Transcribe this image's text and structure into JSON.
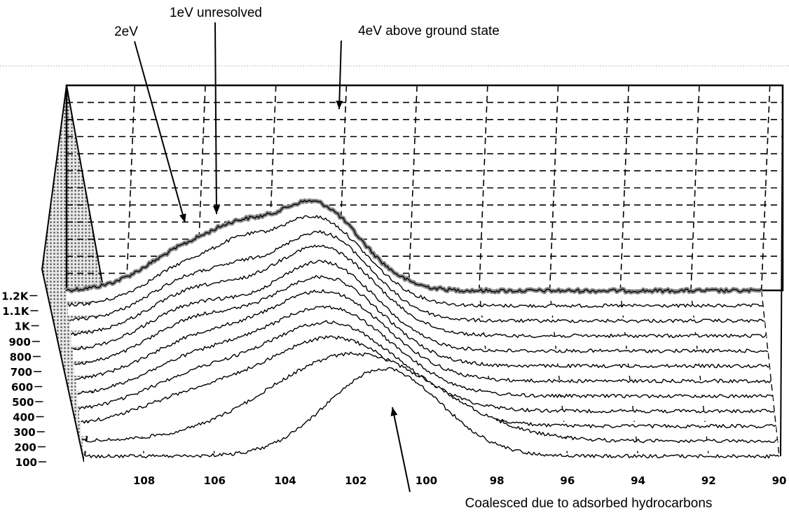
{
  "chart_data": {
    "type": "line",
    "subtype": "3d-waterfall",
    "title": "",
    "xlabel": "",
    "ylabel": "",
    "x_ticks": [
      108,
      106,
      104,
      102,
      100,
      98,
      96,
      94,
      92,
      90
    ],
    "xlim": [
      109.7,
      90
    ],
    "x_reversed": true,
    "z_ticks": [
      "100",
      "200",
      "300",
      "400",
      "500",
      "600",
      "700",
      "800",
      "900",
      "1K",
      "1.1K",
      "1.2K"
    ],
    "grid": true,
    "series": [
      {
        "peaks": [
          {
            "center": 101.2,
            "sigma": 1.6,
            "amp": 1.0
          }
        ]
      },
      {
        "peaks": [
          {
            "center": 102.0,
            "sigma": 2.4,
            "amp": 1.0
          }
        ]
      },
      {
        "peaks": [
          {
            "center": 102.5,
            "sigma": 2.0,
            "amp": 1.0
          },
          {
            "center": 106.5,
            "sigma": 1.6,
            "amp": 0.3
          }
        ]
      },
      {
        "peaks": [
          {
            "center": 102.6,
            "sigma": 1.9,
            "amp": 1.0
          },
          {
            "center": 106.4,
            "sigma": 1.5,
            "amp": 0.35
          }
        ]
      },
      {
        "peaks": [
          {
            "center": 102.6,
            "sigma": 1.8,
            "amp": 1.0
          },
          {
            "center": 106.3,
            "sigma": 1.5,
            "amp": 0.4
          }
        ]
      },
      {
        "peaks": [
          {
            "center": 102.6,
            "sigma": 1.7,
            "amp": 1.0
          },
          {
            "center": 106.2,
            "sigma": 1.5,
            "amp": 0.45
          }
        ]
      },
      {
        "peaks": [
          {
            "center": 102.6,
            "sigma": 1.6,
            "amp": 1.0
          },
          {
            "center": 106.2,
            "sigma": 1.4,
            "amp": 0.5
          }
        ]
      },
      {
        "peaks": [
          {
            "center": 102.6,
            "sigma": 1.5,
            "amp": 1.0
          },
          {
            "center": 106.2,
            "sigma": 1.4,
            "amp": 0.5
          }
        ]
      },
      {
        "peaks": [
          {
            "center": 102.6,
            "sigma": 1.5,
            "amp": 1.0
          },
          {
            "center": 106.1,
            "sigma": 1.4,
            "amp": 0.5
          }
        ]
      },
      {
        "peaks": [
          {
            "center": 102.6,
            "sigma": 1.4,
            "amp": 1.0
          },
          {
            "center": 106.1,
            "sigma": 1.3,
            "amp": 0.5
          },
          {
            "center": 104.8,
            "sigma": 0.6,
            "amp": 0.1
          }
        ]
      },
      {
        "peaks": [
          {
            "center": 102.7,
            "sigma": 1.4,
            "amp": 1.0
          },
          {
            "center": 106.0,
            "sigma": 1.3,
            "amp": 0.5
          },
          {
            "center": 104.8,
            "sigma": 0.6,
            "amp": 0.15
          }
        ]
      },
      {
        "peaks": [
          {
            "center": 102.7,
            "sigma": 1.3,
            "amp": 1.0
          },
          {
            "center": 106.0,
            "sigma": 1.3,
            "amp": 0.52
          },
          {
            "center": 104.8,
            "sigma": 0.7,
            "amp": 0.2
          }
        ]
      }
    ],
    "annotations": [
      {
        "text": "2eV",
        "x": 107.0
      },
      {
        "text": "1eV unresolved",
        "x": 105.6
      },
      {
        "text": "4eV above ground state",
        "x": 102.7
      },
      {
        "text": "Coalesced due to adsorbed hydrocarbons",
        "x": 101.1
      }
    ]
  }
}
